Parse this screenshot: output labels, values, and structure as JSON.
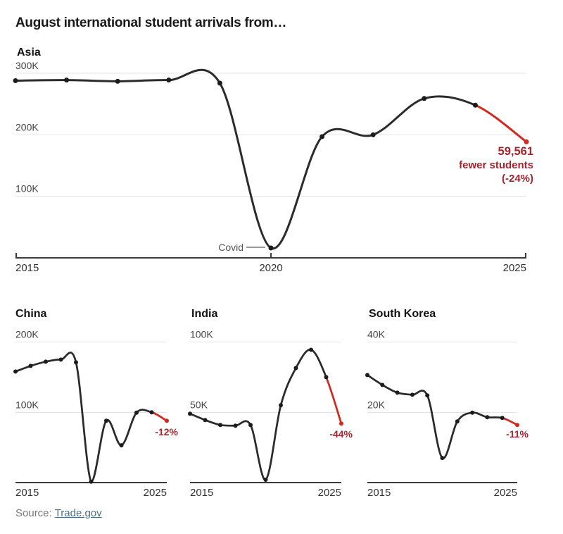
{
  "header": {
    "title": "August international student arrivals from…"
  },
  "source": {
    "prefix": "Source:",
    "link": "Trade.gov"
  },
  "colors": {
    "line_dark": "#2b2b2b",
    "dot_dark": "#1c1c1c",
    "line_red": "#ce2c20",
    "text_red": "#a5242e",
    "grid": "#e4e4e4",
    "axis": "#3a3a3a",
    "ytick_label": "#444444",
    "xtick_label": "#333333"
  },
  "chart_data": [
    {
      "id": "asia",
      "type": "line",
      "title": "Asia",
      "x": [
        2015,
        2016,
        2017,
        2018,
        2019,
        2020,
        2021,
        2022,
        2023,
        2024,
        2025
      ],
      "series": [
        {
          "name": "August arrivals",
          "values": [
            288000,
            289000,
            287000,
            289000,
            284000,
            16000,
            197000,
            200000,
            259000,
            248171,
            188610
          ]
        }
      ],
      "red_from_index": 9,
      "ylim": [
        0,
        310000
      ],
      "yticks": [
        {
          "v": 100000,
          "label": "100K"
        },
        {
          "v": 200000,
          "label": "200K"
        },
        {
          "v": 300000,
          "label": "300K"
        }
      ],
      "xticks": [
        {
          "v": 2015,
          "label": "2015"
        },
        {
          "v": 2020,
          "label": "2020"
        },
        {
          "v": 2025,
          "label": "2025"
        }
      ],
      "annotations": {
        "covid": "Covid",
        "end_lines": [
          "59,561",
          "fewer students",
          "(-24%)"
        ]
      }
    },
    {
      "id": "china",
      "type": "line",
      "title": "China",
      "x": [
        2015,
        2016,
        2017,
        2018,
        2019,
        2020,
        2021,
        2022,
        2023,
        2024,
        2025
      ],
      "series": [
        {
          "name": "August arrivals",
          "values": [
            158000,
            166000,
            172000,
            175000,
            171000,
            1200,
            88000,
            53000,
            99500,
            100000,
            88000
          ]
        }
      ],
      "red_from_index": 9,
      "ylim": [
        0,
        210000
      ],
      "yticks": [
        {
          "v": 100000,
          "label": "100K"
        },
        {
          "v": 200000,
          "label": "200K"
        }
      ],
      "xticks": [
        {
          "v": 2015,
          "label": "2015"
        },
        {
          "v": 2025,
          "label": "2025"
        }
      ],
      "annotations": {
        "end_label": "-12%"
      }
    },
    {
      "id": "india",
      "type": "line",
      "title": "India",
      "x": [
        2015,
        2016,
        2017,
        2018,
        2019,
        2020,
        2021,
        2022,
        2023,
        2024,
        2025
      ],
      "series": [
        {
          "name": "August arrivals",
          "values": [
            49000,
            44500,
            41000,
            40500,
            41000,
            2000,
            55000,
            81500,
            94500,
            75000,
            42000
          ]
        }
      ],
      "red_from_index": 9,
      "ylim": [
        0,
        105000
      ],
      "yticks": [
        {
          "v": 50000,
          "label": "50K"
        },
        {
          "v": 100000,
          "label": "100K"
        }
      ],
      "xticks": [
        {
          "v": 2015,
          "label": "2015"
        },
        {
          "v": 2025,
          "label": "2025"
        }
      ],
      "annotations": {
        "end_label": "-44%"
      }
    },
    {
      "id": "south_korea",
      "type": "line",
      "title": "South Korea",
      "x": [
        2015,
        2016,
        2017,
        2018,
        2019,
        2020,
        2021,
        2022,
        2023,
        2024,
        2025
      ],
      "series": [
        {
          "name": "August arrivals",
          "values": [
            30600,
            27800,
            25600,
            25000,
            24800,
            7000,
            17400,
            19900,
            18600,
            18400,
            16400
          ]
        }
      ],
      "red_from_index": 9,
      "ylim": [
        0,
        42000
      ],
      "yticks": [
        {
          "v": 20000,
          "label": "20K"
        },
        {
          "v": 40000,
          "label": "40K"
        }
      ],
      "xticks": [
        {
          "v": 2015,
          "label": "2015"
        },
        {
          "v": 2025,
          "label": "2025"
        }
      ],
      "annotations": {
        "end_label": "-11%"
      }
    }
  ]
}
